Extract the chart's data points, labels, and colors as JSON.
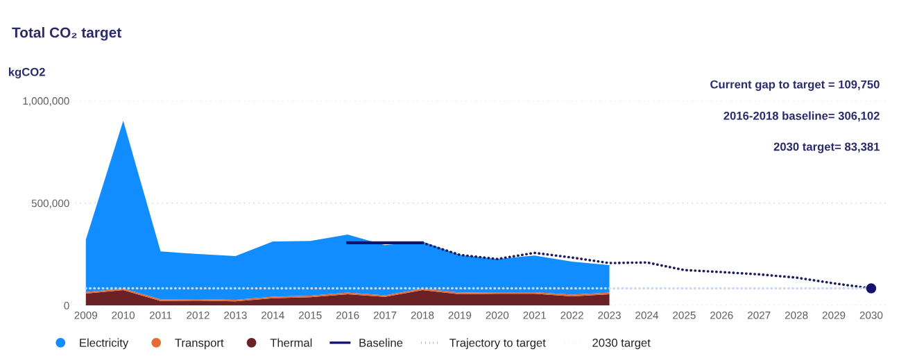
{
  "chart_data": {
    "type": "area",
    "title": "Total CO₂ target",
    "ylabel": "kgCO2",
    "stacked": true,
    "legend": "bottom",
    "grid": "y",
    "categories": [
      "2009",
      "2010",
      "2011",
      "2012",
      "2013",
      "2014",
      "2015",
      "2016",
      "2017",
      "2018",
      "2019",
      "2020",
      "2021",
      "2022",
      "2023",
      "2024",
      "2025",
      "2026",
      "2027",
      "2028",
      "2029",
      "2030"
    ],
    "ylim": [
      0,
      1000000
    ],
    "yticks": [
      0,
      {
        "value": 500000,
        "label": "500,000"
      },
      {
        "value": 1000000,
        "label": "1,000,000"
      }
    ],
    "series": [
      {
        "name": "Thermal",
        "color": "#6b2227",
        "values": [
          58000,
          75000,
          22000,
          23000,
          20000,
          35000,
          40000,
          55000,
          42000,
          75000,
          55000,
          57000,
          57000,
          45000,
          55000,
          null,
          null,
          null,
          null,
          null,
          null,
          null
        ]
      },
      {
        "name": "Transport",
        "color": "#e66c37",
        "values": [
          8000,
          8000,
          8000,
          8000,
          8000,
          8000,
          8000,
          8000,
          8000,
          8000,
          8000,
          8000,
          8000,
          8000,
          8000,
          null,
          null,
          null,
          null,
          null,
          null,
          null
        ]
      },
      {
        "name": "Electricity",
        "color": "#118dff",
        "values": [
          256000,
          819000,
          234000,
          220000,
          213000,
          269000,
          267000,
          283000,
          245000,
          229000,
          184000,
          162000,
          179000,
          161000,
          134000,
          null,
          null,
          null,
          null,
          null,
          null,
          null
        ]
      },
      {
        "name": "Baseline",
        "type": "line",
        "line_style": "solid",
        "color": "#12126b",
        "values": [
          null,
          null,
          null,
          null,
          null,
          null,
          null,
          306102,
          306102,
          306102,
          null,
          null,
          null,
          null,
          null,
          null,
          null,
          null,
          null,
          null,
          null,
          null
        ]
      },
      {
        "name": "Trajectory to target",
        "type": "line",
        "line_style": "dotted",
        "color": "#1c1c5e",
        "values": [
          null,
          null,
          null,
          null,
          null,
          null,
          null,
          null,
          null,
          306102,
          247000,
          227000,
          257000,
          234000,
          207000,
          210000,
          173000,
          163000,
          152000,
          136000,
          108000,
          83381
        ]
      },
      {
        "name": "2030 target",
        "type": "line",
        "line_style": "dotted",
        "color": "#c8d8f8",
        "values": [
          83381,
          83381,
          83381,
          83381,
          83381,
          83381,
          83381,
          83381,
          83381,
          83381,
          83381,
          83381,
          83381,
          83381,
          83381,
          83381,
          83381,
          83381,
          83381,
          83381,
          83381,
          83381
        ]
      },
      {
        "type": "scatter",
        "marker": "circle",
        "color": "#12126b",
        "values": [
          null,
          null,
          null,
          null,
          null,
          null,
          null,
          null,
          null,
          null,
          null,
          null,
          null,
          null,
          null,
          null,
          null,
          null,
          null,
          null,
          null,
          83381
        ]
      }
    ],
    "annotations": [
      "Current gap to target = 109,750",
      "2016-2018 baseline= 306,102",
      "2030 target= 83,381"
    ]
  }
}
